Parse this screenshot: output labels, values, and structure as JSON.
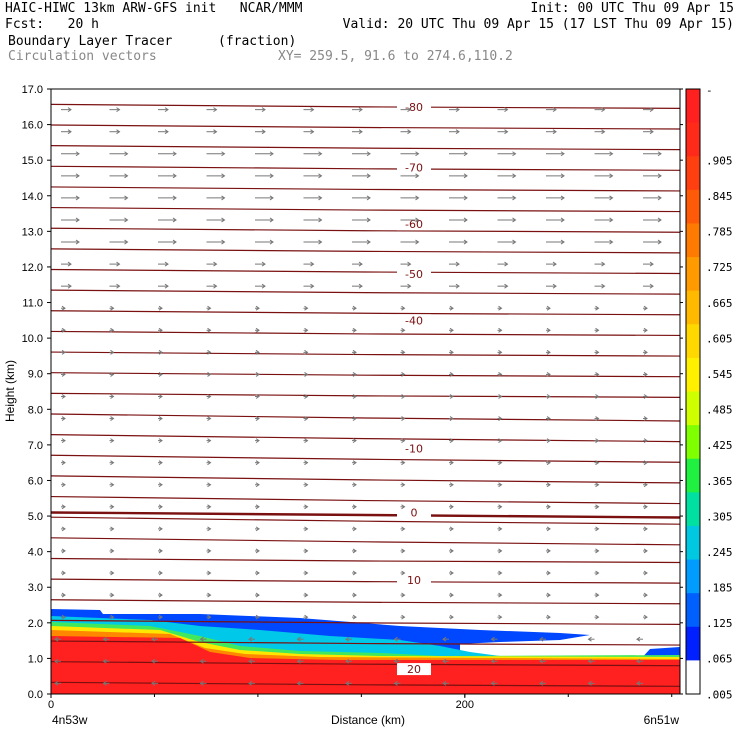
{
  "header": {
    "line1_left": "HAIC-HIWC 13km ARW-GFS init   NCAR/MMM",
    "line1_right": "Init: 00 UTC Thu 09 Apr 15",
    "line2_left": "Fcst:   20 h",
    "line2_right": "Valid: 20 UTC Thu 09 Apr 15 (17 LST Thu 09 Apr 15)",
    "field_name": "Boundary Layer Tracer",
    "field_unit": "(fraction)",
    "vector_label": "Circulation vectors",
    "xy_label": "XY= 259.5, 91.6 to 274.6,110.2"
  },
  "chart_data": {
    "type": "cross-section",
    "ylabel": "Height (km)",
    "xlabel": "Distance (km)",
    "ylim": [
      0,
      17
    ],
    "xlim": [
      0,
      304
    ],
    "y_ticks": [
      "0.0",
      "1.0",
      "2.0",
      "3.0",
      "4.0",
      "5.0",
      "6.0",
      "7.0",
      "8.0",
      "9.0",
      "10.0",
      "11.0",
      "12.0",
      "13.0",
      "14.0",
      "15.0",
      "16.0",
      "17.0"
    ],
    "x_tick_labels": [
      {
        "x": 0,
        "label": "0"
      },
      {
        "x": 200,
        "label": "200"
      }
    ],
    "x_endpoint_left": "4n53w",
    "x_endpoint_right": "6n51w",
    "colorbar": {
      "levels": [
        "-",
        ".905",
        ".845",
        ".785",
        ".725",
        ".665",
        ".605",
        ".545",
        ".485",
        ".425",
        ".365",
        ".305",
        ".245",
        ".185",
        ".125",
        ".065",
        ".005"
      ],
      "colors": [
        "#ff2020",
        "#ff2a1a",
        "#ff3f10",
        "#ff5a08",
        "#ff7a00",
        "#ff9a00",
        "#ffba00",
        "#ffd800",
        "#fff000",
        "#d0ff00",
        "#80ff00",
        "#20f040",
        "#00e0a0",
        "#00c8e0",
        "#009cff",
        "#0060ff",
        "#0020ff",
        "#ffffff"
      ]
    },
    "temperature_labels": [
      {
        "value": "-80",
        "height": 16.5
      },
      {
        "value": "-70",
        "height": 14.8
      },
      {
        "value": "-60",
        "height": 13.2
      },
      {
        "value": "-50",
        "height": 11.8
      },
      {
        "value": "-40",
        "height": 10.5
      },
      {
        "value": "-10",
        "height": 6.9
      },
      {
        "value": "0",
        "height": 5.1
      },
      {
        "value": "10",
        "height": 3.2
      },
      {
        "value": "20",
        "height": 0.7
      }
    ]
  }
}
